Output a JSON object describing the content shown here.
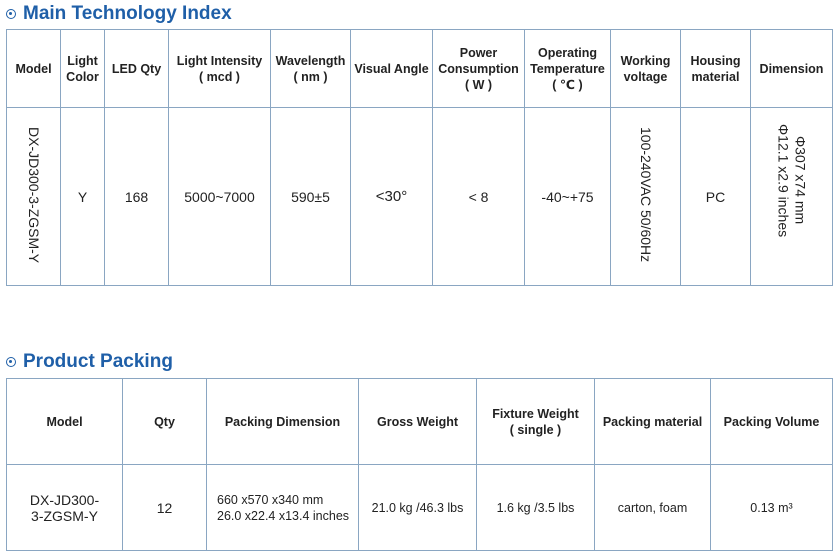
{
  "tech": {
    "title": "Main Technology Index",
    "headers": {
      "model": "Model",
      "light_color_1": "Light",
      "light_color_2": "Color",
      "led_qty": "LED Qty",
      "intensity_1": "Light Intensity",
      "intensity_2": "( mcd )",
      "wavelength_1": "Wavelength",
      "wavelength_2": "( nm )",
      "visual_angle": "Visual Angle",
      "power_1": "Power",
      "power_2": "Consumption",
      "power_3": "( W )",
      "temp_1": "Operating",
      "temp_2": "Temperature",
      "temp_3": "( ℃ )",
      "voltage_1": "Working",
      "voltage_2": "voltage",
      "housing_1": "Housing",
      "housing_2": "material",
      "dimension": "Dimension"
    },
    "row": {
      "model": "DX-JD300-3-ZGSM-Y",
      "light_color": "Y",
      "led_qty": "168",
      "intensity": "5000~7000",
      "wavelength": "590±5",
      "visual_angle": "<30°",
      "power": "< 8",
      "temperature": "-40~+75",
      "voltage": "100-240VAC 50/60Hz",
      "housing": "PC",
      "dimension": "Φ307 x74 mm\nΦ12.1 x2.9 inches"
    }
  },
  "packing": {
    "title": "Product Packing",
    "headers": {
      "model": "Model",
      "qty": "Qty",
      "dimension": "Packing Dimension",
      "gross_weight": "Gross Weight",
      "fixture_weight_1": "Fixture Weight",
      "fixture_weight_2": "( single )",
      "material": "Packing material",
      "volume": "Packing Volume"
    },
    "row": {
      "model_1": "DX-JD300-",
      "model_2": "3-ZGSM-Y",
      "qty": "12",
      "dimension_1": "660 x570 x340 mm",
      "dimension_2": "26.0 x22.4 x13.4 inches",
      "gross_weight": "21.0 kg /46.3 lbs",
      "fixture_weight": "1.6 kg /3.5 lbs",
      "material": "carton, foam",
      "volume": "0.13 m³"
    }
  }
}
